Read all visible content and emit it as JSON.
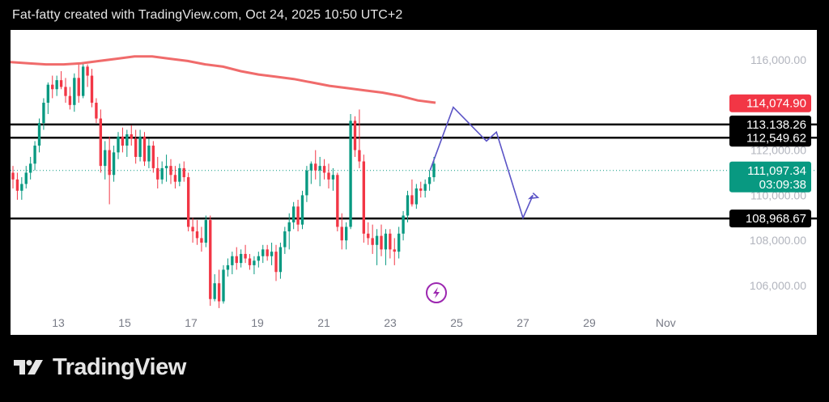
{
  "header": {
    "caption": "Fat-fatty created with TradingView.com, Oct 24, 2025 10:50 UTC+2"
  },
  "brand": {
    "name": "TradingView",
    "logo_icon": "tradingview-logo-icon"
  },
  "chart_data": {
    "type": "candlestick",
    "yticks": [
      "116,000.00",
      "112,000.00",
      "110,000.00",
      "108,000.00",
      "106,000.00"
    ],
    "xticks": [
      "13",
      "15",
      "17",
      "19",
      "21",
      "23",
      "25",
      "27",
      "29",
      "Nov"
    ],
    "ylim": [
      104500,
      117000
    ],
    "moving_average": {
      "color": "#f06b6b"
    },
    "price_tags": [
      {
        "label": "114,074.90",
        "color": "#f23645",
        "text_color": "#ffffff",
        "price": 114074.9
      },
      {
        "label": "113,138.26",
        "color": "#000000",
        "text_color": "#ffffff",
        "price": 113138.26
      },
      {
        "label": "112,549.62",
        "color": "#000000",
        "text_color": "#ffffff",
        "price": 112549.62
      },
      {
        "label": "111,097.34",
        "sublabel": "03:09:38",
        "color": "#089981",
        "text_color": "#ffffff",
        "price": 111097.34
      },
      {
        "label": "108,968.67",
        "color": "#000000",
        "text_color": "#ffffff",
        "price": 108968.67
      }
    ],
    "horizontal_levels": [
      113138.26,
      112549.62,
      108968.67
    ],
    "last_price": 111097.34,
    "projection_path_color": "#5b54c6",
    "up_color": "#089981",
    "down_color": "#f23645",
    "candles_ohlc": [
      [
        111000,
        111300,
        110300,
        110700
      ],
      [
        110700,
        111000,
        109800,
        110200
      ],
      [
        110200,
        110800,
        109800,
        110500
      ],
      [
        110500,
        111300,
        110300,
        111000
      ],
      [
        111000,
        111700,
        110700,
        111400
      ],
      [
        111400,
        112400,
        111100,
        112200
      ],
      [
        112200,
        113400,
        111900,
        113200
      ],
      [
        113200,
        114300,
        112900,
        114100
      ],
      [
        114100,
        115000,
        113600,
        114900
      ],
      [
        114900,
        115300,
        114300,
        114700
      ],
      [
        114700,
        115300,
        114400,
        115100
      ],
      [
        115100,
        115500,
        114700,
        114800
      ],
      [
        114800,
        115200,
        114100,
        114400
      ],
      [
        114400,
        114800,
        113800,
        114000
      ],
      [
        114000,
        115400,
        113700,
        115200
      ],
      [
        115200,
        115800,
        114100,
        114400
      ],
      [
        114400,
        115900,
        114300,
        115700
      ],
      [
        115700,
        115800,
        114800,
        115300
      ],
      [
        115300,
        115600,
        113900,
        114100
      ],
      [
        114100,
        114300,
        113200,
        113400
      ],
      [
        113400,
        113800,
        111000,
        111300
      ],
      [
        111300,
        112400,
        110700,
        112000
      ],
      [
        112000,
        112600,
        109600,
        110900
      ],
      [
        110900,
        112200,
        110600,
        111900
      ],
      [
        111900,
        112800,
        111600,
        112600
      ],
      [
        112600,
        113000,
        111900,
        112200
      ],
      [
        112200,
        112900,
        111700,
        112700
      ],
      [
        112700,
        113100,
        112200,
        112500
      ],
      [
        112500,
        112900,
        111400,
        111700
      ],
      [
        111700,
        112900,
        111500,
        112600
      ],
      [
        112600,
        112800,
        111300,
        111500
      ],
      [
        111500,
        112500,
        111200,
        112200
      ],
      [
        112200,
        112400,
        111000,
        111200
      ],
      [
        111200,
        111700,
        110300,
        110700
      ],
      [
        110700,
        111500,
        110500,
        111200
      ],
      [
        111200,
        111800,
        110600,
        111300
      ],
      [
        111300,
        111600,
        110500,
        110900
      ],
      [
        110900,
        111300,
        110300,
        110600
      ],
      [
        110600,
        111400,
        110400,
        111200
      ],
      [
        111200,
        111500,
        110600,
        110800
      ],
      [
        110800,
        111000,
        108400,
        108600
      ],
      [
        108600,
        109000,
        107900,
        108400
      ],
      [
        108400,
        108900,
        107800,
        108100
      ],
      [
        108100,
        108600,
        107500,
        107900
      ],
      [
        107900,
        109100,
        107700,
        108900
      ],
      [
        108900,
        109100,
        105100,
        105400
      ],
      [
        105400,
        106500,
        105300,
        106100
      ],
      [
        106100,
        106700,
        105000,
        105300
      ],
      [
        105300,
        106900,
        105200,
        106700
      ],
      [
        106700,
        107200,
        106400,
        106900
      ],
      [
        106900,
        107500,
        106500,
        107300
      ],
      [
        107300,
        107700,
        106700,
        107000
      ],
      [
        107000,
        107600,
        106800,
        107400
      ],
      [
        107400,
        107800,
        107000,
        107200
      ],
      [
        107200,
        107400,
        106700,
        106900
      ],
      [
        106900,
        107300,
        106500,
        107100
      ],
      [
        107100,
        107500,
        106800,
        107300
      ],
      [
        107300,
        107800,
        107000,
        107600
      ],
      [
        107600,
        107800,
        107100,
        107300
      ],
      [
        107300,
        107900,
        106900,
        107500
      ],
      [
        107500,
        107800,
        106200,
        106600
      ],
      [
        106600,
        107900,
        106300,
        107700
      ],
      [
        107700,
        108600,
        107400,
        108400
      ],
      [
        108400,
        109200,
        107600,
        108800
      ],
      [
        108800,
        109700,
        108500,
        109500
      ],
      [
        109500,
        109800,
        108400,
        108700
      ],
      [
        108700,
        110200,
        108500,
        110000
      ],
      [
        110000,
        111300,
        109700,
        111100
      ],
      [
        111100,
        111500,
        110500,
        111400
      ],
      [
        111400,
        112000,
        110700,
        111100
      ],
      [
        111100,
        111700,
        110400,
        111300
      ],
      [
        111300,
        111600,
        110700,
        111000
      ],
      [
        111000,
        111400,
        110300,
        110700
      ],
      [
        110700,
        111200,
        110200,
        110900
      ],
      [
        110900,
        111000,
        108400,
        108600
      ],
      [
        108600,
        109200,
        107600,
        108000
      ],
      [
        108000,
        108800,
        107600,
        108600
      ],
      [
        108600,
        113600,
        108500,
        113300
      ],
      [
        113300,
        113500,
        111700,
        112000
      ],
      [
        112000,
        113800,
        111200,
        111500
      ],
      [
        111500,
        111800,
        107900,
        108300
      ],
      [
        108300,
        108800,
        107800,
        108100
      ],
      [
        108100,
        108700,
        107400,
        107800
      ],
      [
        107800,
        108500,
        106900,
        108200
      ],
      [
        108200,
        108700,
        107300,
        107600
      ],
      [
        107600,
        108500,
        106900,
        108300
      ],
      [
        108300,
        108500,
        107200,
        107600
      ],
      [
        107600,
        108100,
        106900,
        107500
      ],
      [
        107500,
        108600,
        107200,
        108300
      ],
      [
        108300,
        109300,
        108000,
        109100
      ],
      [
        109100,
        110200,
        108800,
        110000
      ],
      [
        110000,
        110700,
        109500,
        109600
      ],
      [
        109600,
        110500,
        109400,
        110300
      ],
      [
        110300,
        110600,
        109900,
        110200
      ],
      [
        110200,
        110700,
        109900,
        110500
      ],
      [
        110500,
        111100,
        110200,
        110800
      ],
      [
        110800,
        111700,
        110600,
        111400
      ]
    ],
    "ma_values": [
      115900,
      115850,
      115800,
      115800,
      115850,
      115950,
      116050,
      116150,
      116150,
      116050,
      115950,
      115800,
      115700,
      115500,
      115350,
      115250,
      115150,
      115000,
      114850,
      114750,
      114650,
      114550,
      114400,
      114200,
      114100
    ],
    "projection_path": [
      [
        111100,
        24.2
      ],
      [
        113900,
        24.9
      ],
      [
        112400,
        25.9
      ],
      [
        112800,
        26.2
      ],
      [
        109000,
        27.0
      ],
      [
        110000,
        27.3
      ],
      [
        109860,
        27.2
      ],
      [
        109900,
        27.45
      ],
      [
        110100,
        27.3
      ]
    ]
  }
}
